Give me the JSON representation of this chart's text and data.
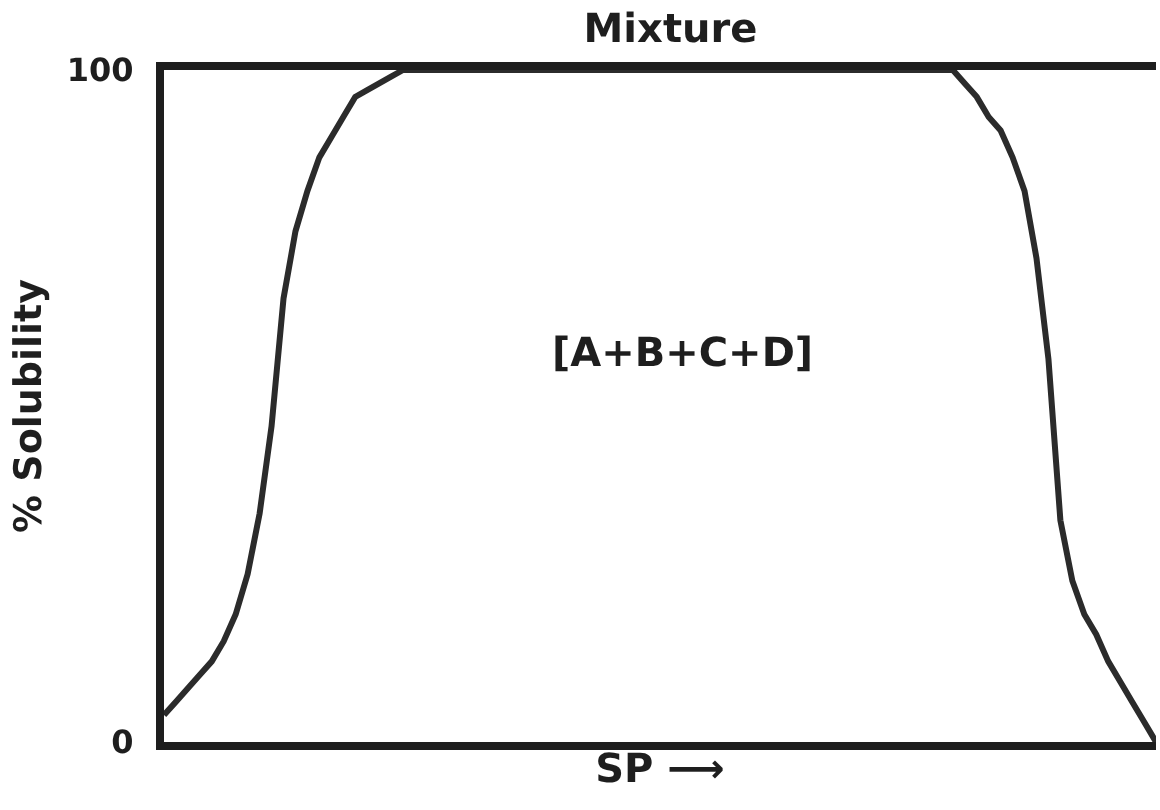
{
  "chart_data": {
    "type": "line",
    "title": "Mixture",
    "xlabel": "SP ⟶",
    "ylabel": "% Solubility",
    "annotations": [
      "[A+B+C+D]"
    ],
    "categories": [
      null,
      null,
      null,
      null,
      null,
      null,
      null,
      null,
      null,
      null,
      null,
      null,
      null,
      null,
      null,
      null,
      null,
      null,
      null,
      null,
      null,
      null,
      null,
      null,
      null,
      null,
      null,
      null,
      null,
      null,
      null,
      null,
      null,
      null,
      null,
      null,
      null,
      null,
      null,
      null,
      null,
      null,
      null,
      null,
      null,
      null,
      null,
      null,
      null,
      null,
      null,
      null,
      null,
      null,
      null,
      null,
      null,
      null,
      null,
      null,
      null,
      null,
      null,
      null,
      null,
      null,
      null,
      null,
      null,
      null,
      null,
      null,
      null,
      null,
      null,
      null,
      null,
      null,
      null,
      null,
      null,
      null,
      null,
      null
    ],
    "values": [
      4,
      6,
      8,
      10,
      12,
      15,
      19,
      25,
      34,
      47,
      66,
      76,
      82,
      87,
      90,
      93,
      96,
      97,
      98,
      99,
      100,
      100,
      100,
      100,
      100,
      100,
      100,
      100,
      100,
      100,
      100,
      100,
      100,
      100,
      100,
      100,
      100,
      100,
      100,
      100,
      100,
      100,
      100,
      100,
      100,
      100,
      100,
      100,
      100,
      100,
      100,
      100,
      100,
      100,
      100,
      100,
      100,
      100,
      100,
      100,
      100,
      100,
      100,
      100,
      100,
      100,
      100,
      98,
      96,
      93,
      91,
      87,
      82,
      72,
      57,
      33,
      24,
      19,
      16,
      12,
      9,
      6,
      3,
      0
    ],
    "color": "#2b2b2b",
    "line_style": "solid",
    "ylim": [
      0,
      100
    ],
    "yticks": [
      0,
      100
    ],
    "tick_labels": "y"
  }
}
